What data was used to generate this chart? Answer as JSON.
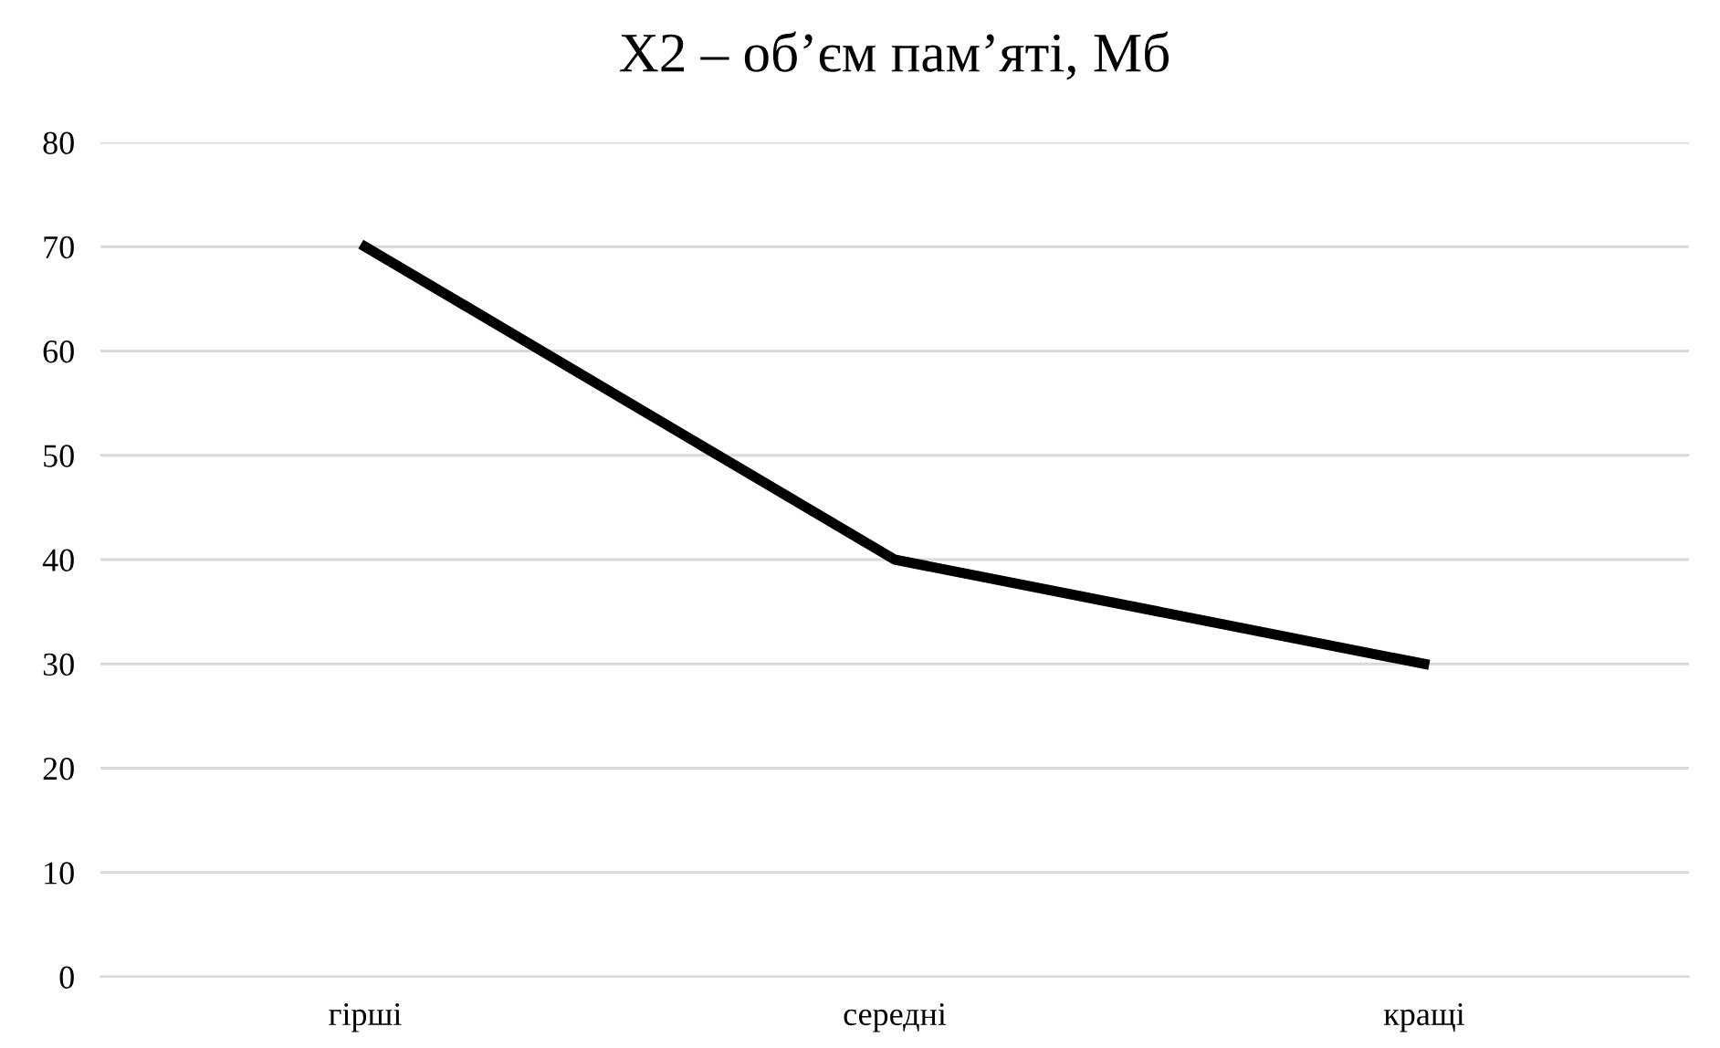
{
  "chart_data": {
    "type": "line",
    "title": "X2 – об’єм пам’яті, Мб",
    "categories": [
      "гірші",
      "середні",
      "кращі"
    ],
    "series": [
      {
        "color": "#000000",
        "values": [
          70,
          40,
          30
        ]
      }
    ],
    "ylim": [
      0,
      80
    ],
    "yticks": [
      0,
      10,
      20,
      30,
      40,
      50,
      60,
      70,
      80
    ],
    "grid": "y",
    "legend": false,
    "marker": "none",
    "line_style": "solid"
  }
}
